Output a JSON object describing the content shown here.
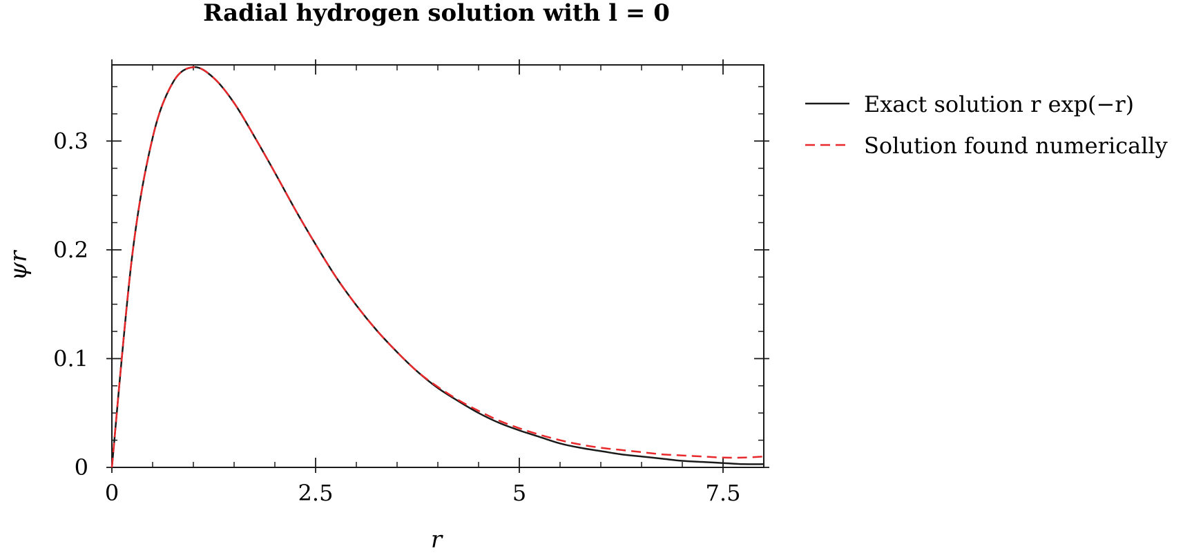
{
  "chart_data": {
    "type": "line",
    "title": "Radial hydrogen solution with l = 0",
    "xlabel": "r",
    "ylabel": "ψr",
    "xlim": [
      0,
      8
    ],
    "ylim": [
      0,
      0.37
    ],
    "xticks": [
      0,
      2.5,
      5,
      7.5
    ],
    "xtick_labels": [
      "0",
      "2.5",
      "5",
      "7.5"
    ],
    "yticks": [
      0,
      0.1,
      0.2,
      0.3
    ],
    "ytick_labels": [
      "0",
      "0.1",
      "0.2",
      "0.3"
    ],
    "grid": false,
    "legend_position": "outside-right",
    "x": [
      0,
      0.25,
      0.5,
      0.75,
      1,
      1.25,
      1.5,
      1.75,
      2,
      2.25,
      2.5,
      2.75,
      3,
      3.25,
      3.5,
      3.75,
      4,
      4.25,
      4.5,
      4.75,
      5,
      5.25,
      5.5,
      5.75,
      6,
      6.25,
      6.5,
      6.75,
      7,
      7.25,
      7.5,
      7.75,
      8
    ],
    "series": [
      {
        "name": "Exact solution r exp(−r)",
        "color": "#1a1a1a",
        "dash": "solid",
        "values": [
          0,
          0.195,
          0.303,
          0.354,
          0.368,
          0.358,
          0.335,
          0.304,
          0.271,
          0.237,
          0.205,
          0.175,
          0.149,
          0.126,
          0.106,
          0.088,
          0.073,
          0.061,
          0.05,
          0.041,
          0.034,
          0.028,
          0.022,
          0.018,
          0.015,
          0.012,
          0.01,
          0.008,
          0.006,
          0.005,
          0.004,
          0.003,
          0.003
        ]
      },
      {
        "name": "Solution found numerically",
        "color": "#e8282b",
        "dash": "dashed",
        "values": [
          0,
          0.195,
          0.303,
          0.354,
          0.368,
          0.358,
          0.335,
          0.304,
          0.271,
          0.237,
          0.205,
          0.175,
          0.149,
          0.126,
          0.106,
          0.088,
          0.074,
          0.062,
          0.052,
          0.043,
          0.036,
          0.03,
          0.025,
          0.021,
          0.018,
          0.016,
          0.014,
          0.012,
          0.011,
          0.01,
          0.009,
          0.009,
          0.01
        ]
      }
    ]
  }
}
